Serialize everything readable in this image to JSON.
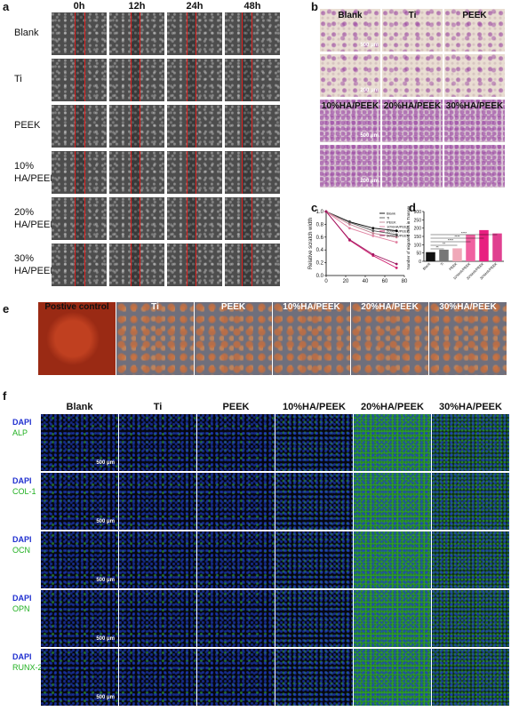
{
  "panel_a": {
    "letter": "a",
    "columns": [
      "0h",
      "12h",
      "24h",
      "48h"
    ],
    "rows": [
      "Blank",
      "Ti",
      "PEEK",
      "10%\nHA/PEEK",
      "20%\nHA/PEEK",
      "30%\nHA/PEEK"
    ]
  },
  "panel_b": {
    "letter": "b",
    "groups_top": [
      "Blank",
      "Ti",
      "PEEK"
    ],
    "groups_bottom": [
      "10%HA/PEEK",
      "20%HA/PEEK",
      "30%HA/PEEK"
    ],
    "scale_bar": "500 μm",
    "scale_bar_small": "200 μm"
  },
  "chart_data": [
    {
      "panel": "c",
      "type": "line",
      "ylabel": "Relative scratch width",
      "xlim": [
        0,
        80
      ],
      "ylim": [
        0.0,
        1.0
      ],
      "xticks": [
        "0",
        "20",
        "40",
        "60",
        "80"
      ],
      "yticks": [
        "0.0",
        "0.2",
        "0.4",
        "0.6",
        "0.8",
        "1.0"
      ],
      "x": [
        0,
        24,
        48,
        72
      ],
      "series": [
        {
          "name": "Blank",
          "color": "#000000",
          "values": [
            1.0,
            0.84,
            0.74,
            0.7
          ]
        },
        {
          "name": "Ti",
          "color": "#555555",
          "values": [
            1.0,
            0.83,
            0.7,
            0.64
          ]
        },
        {
          "name": "PEEK",
          "color": "#c08090",
          "values": [
            1.0,
            0.8,
            0.66,
            0.6
          ]
        },
        {
          "name": "10%HA/PEEK",
          "color": "#e080a0",
          "values": [
            1.0,
            0.74,
            0.62,
            0.52
          ]
        },
        {
          "name": "20%HA/PEEK",
          "color": "#d02070",
          "values": [
            1.0,
            0.55,
            0.31,
            0.12
          ]
        },
        {
          "name": "30%HA/PEEK",
          "color": "#a01860",
          "values": [
            1.0,
            0.56,
            0.33,
            0.18
          ]
        }
      ],
      "legend_position": "top-right"
    },
    {
      "panel": "d",
      "type": "bar",
      "ylabel": "Number of migrated cells in Transwell",
      "categories": [
        "Blank",
        "Ti",
        "PEEK",
        "10%HA/PEEK",
        "20%HA/PEEK",
        "30%HA/PEEK"
      ],
      "values": [
        55,
        70,
        78,
        160,
        188,
        168
      ],
      "colors": [
        "#111111",
        "#777777",
        "#f0a8b8",
        "#f060a0",
        "#e82080",
        "#e04090"
      ],
      "ylim": [
        0,
        300
      ],
      "yticks": [
        "0",
        "50",
        "100",
        "150",
        "200",
        "250",
        "300"
      ],
      "significance": [
        "**",
        "**",
        "****",
        "****",
        "****",
        "****"
      ]
    }
  ],
  "panel_e": {
    "letter": "e",
    "columns": [
      "Postive control",
      "Ti",
      "PEEK",
      "10%HA/PEEK",
      "20%HA/PEEK",
      "30%HA/PEEK"
    ]
  },
  "panel_f": {
    "letter": "f",
    "columns": [
      "Blank",
      "Ti",
      "PEEK",
      "10%HA/PEEK",
      "20%HA/PEEK",
      "30%HA/PEEK"
    ],
    "rows": [
      {
        "stain": "DAPI",
        "marker": "ALP"
      },
      {
        "stain": "DAPI",
        "marker": "COL-1"
      },
      {
        "stain": "DAPI",
        "marker": "OCN"
      },
      {
        "stain": "DAPI",
        "marker": "OPN"
      },
      {
        "stain": "DAPI",
        "marker": "RUNX-2"
      }
    ],
    "scale_bar": "500 μm"
  }
}
